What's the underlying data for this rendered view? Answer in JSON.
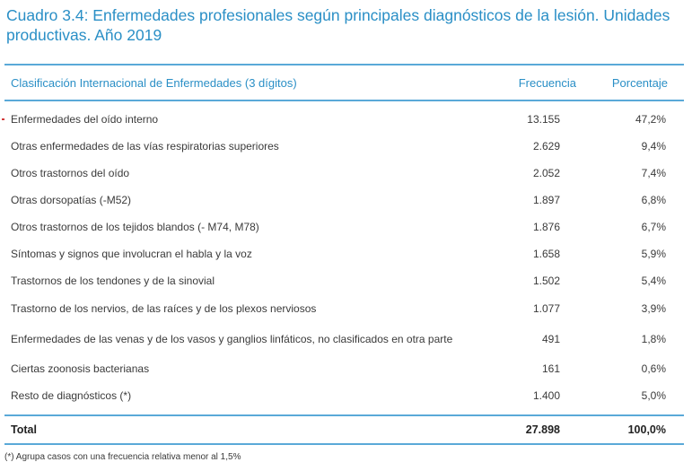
{
  "title": "Cuadro 3.4: Enfermedades profesionales según principales diagnósticos de la lesión. Unidades productivas. Año 2019",
  "columns": {
    "classification": "Clasificación Internacional de Enfermedades (3 dígitos)",
    "frequency": "Frecuencia",
    "percentage": "Porcentaje"
  },
  "rows": [
    {
      "label": "Enfermedades del oído interno",
      "frequency": "13.155",
      "percentage": "47,2%"
    },
    {
      "label": "Otras enfermedades de las vías respiratorias superiores",
      "frequency": "2.629",
      "percentage": "9,4%"
    },
    {
      "label": "Otros trastornos del oído",
      "frequency": "2.052",
      "percentage": "7,4%"
    },
    {
      "label": "Otras dorsopatías (-M52)",
      "frequency": "1.897",
      "percentage": "6,8%"
    },
    {
      "label": "Otros trastornos de los tejidos blandos (- M74, M78)",
      "frequency": "1.876",
      "percentage": "6,7%"
    },
    {
      "label": "Síntomas y signos que involucran el habla y la voz",
      "frequency": "1.658",
      "percentage": "5,9%"
    },
    {
      "label": "Trastornos de los tendones y de la sinovial",
      "frequency": "1.502",
      "percentage": "5,4%"
    },
    {
      "label": "Trastorno de los nervios, de las raíces y de los plexos nerviosos",
      "frequency": "1.077",
      "percentage": "3,9%"
    },
    {
      "label": "Enfermedades de las venas y de los vasos y ganglios linfáticos, no clasificados en otra parte",
      "frequency": "491",
      "percentage": "1,8%"
    },
    {
      "label": "Ciertas zoonosis bacterianas",
      "frequency": "161",
      "percentage": "0,6%"
    },
    {
      "label": "Resto de diagnósticos (*)",
      "frequency": "1.400",
      "percentage": "5,0%"
    }
  ],
  "total": {
    "label": "Total",
    "frequency": "27.898",
    "percentage": "100,0%"
  },
  "footnote": "(*) Agrupa casos con una frecuencia relativa menor al 1,5%",
  "colors": {
    "accent": "#2a8fc6",
    "rule": "#5aa9d8",
    "marker": "#d23a3a"
  }
}
